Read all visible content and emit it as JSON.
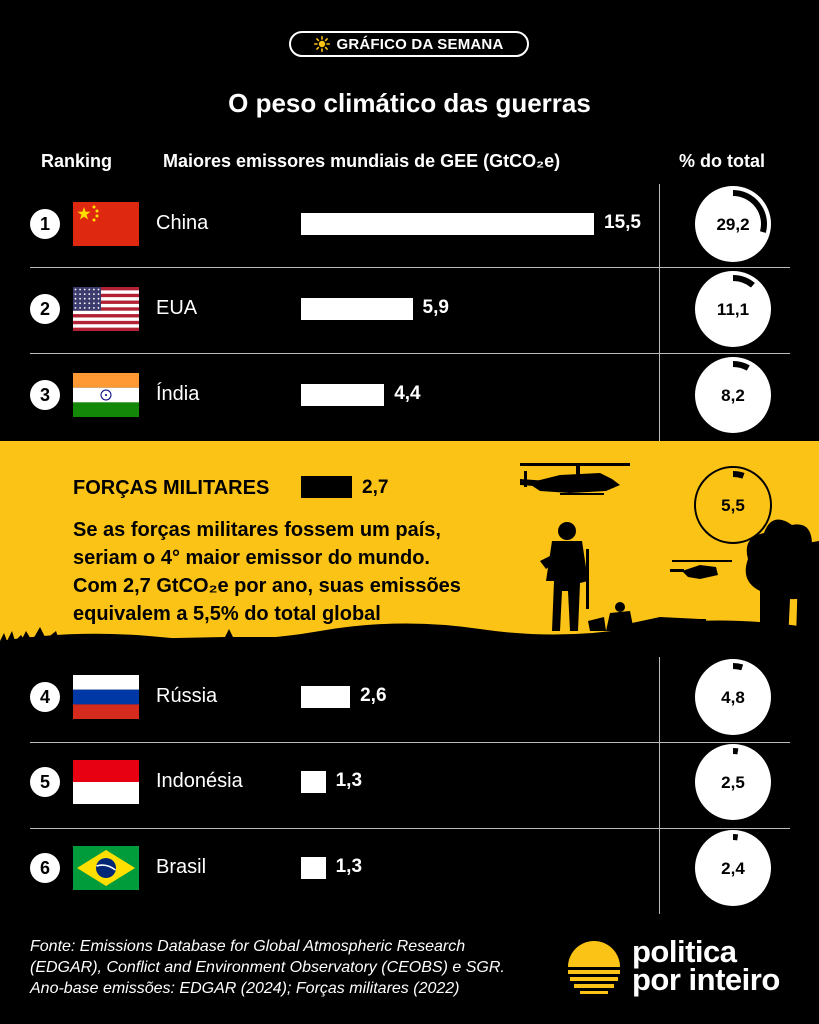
{
  "header": {
    "badge": "GRÁFICO DA SEMANA",
    "title": "O peso climático das guerras",
    "col_ranking": "Ranking",
    "col_emitters": "Maiores emissores mundiais de GEE (GtCO₂e)",
    "col_percent": "% do total"
  },
  "military": {
    "label": "FORÇAS MILITARES",
    "value_label": "2,7",
    "percent_label": "5,5",
    "text_lines": [
      "Se as forças militares fossem um país,",
      "seriam o 4° maior emissor do mundo.",
      "Com 2,7 GtCO₂e por ano, suas emissões",
      "equivalem a 5,5% do total global"
    ]
  },
  "chart_data": {
    "type": "bar",
    "categories": [
      "China",
      "EUA",
      "Índia",
      "FORÇAS MILITARES",
      "Rússia",
      "Indonésia",
      "Brasil"
    ],
    "values": [
      15.5,
      5.9,
      4.4,
      2.7,
      2.6,
      1.3,
      1.3
    ],
    "percent_of_total": [
      29.2,
      11.1,
      8.2,
      5.5,
      4.8,
      2.5,
      2.4
    ],
    "ranks": [
      "1",
      "2",
      "3",
      "",
      "4",
      "5",
      "6"
    ],
    "value_labels": [
      "15,5",
      "5,9",
      "4,4",
      "2,7",
      "2,6",
      "1,3",
      "1,3"
    ],
    "percent_labels": [
      "29,2",
      "11,1",
      "8,2",
      "5,5",
      "4,8",
      "2,5",
      "2,4"
    ]
  },
  "rows": [
    {
      "rank": "1",
      "name": "China",
      "value": 15.5,
      "value_label": "15,5",
      "percent": 29.2,
      "percent_label": "29,2",
      "flag": "china-flag"
    },
    {
      "rank": "2",
      "name": "EUA",
      "value": 5.9,
      "value_label": "5,9",
      "percent": 11.1,
      "percent_label": "11,1",
      "flag": "usa-flag"
    },
    {
      "rank": "3",
      "name": "Índia",
      "value": 4.4,
      "value_label": "4,4",
      "percent": 8.2,
      "percent_label": "8,2",
      "flag": "india-flag"
    },
    {
      "rank": "4",
      "name": "Rússia",
      "value": 2.6,
      "value_label": "2,6",
      "percent": 4.8,
      "percent_label": "4,8",
      "flag": "russia-flag"
    },
    {
      "rank": "5",
      "name": "Indonésia",
      "value": 1.3,
      "value_label": "1,3",
      "percent": 2.5,
      "percent_label": "2,5",
      "flag": "indonesia-flag"
    },
    {
      "rank": "6",
      "name": "Brasil",
      "value": 1.3,
      "value_label": "1,3",
      "percent": 2.4,
      "percent_label": "2,4",
      "flag": "brazil-flag"
    }
  ],
  "footer": {
    "source_lines": [
      "Fonte: Emissions Database for Global Atmospheric Research",
      "(EDGAR), Conflict and Environment Observatory (CEOBS) e SGR.",
      "Ano-base emissões: EDGAR (2024); Forças militares (2022)"
    ],
    "logo_line1": "politica",
    "logo_line2": "por inteiro"
  },
  "colors": {
    "background": "#000000",
    "accent_yellow": "#fcc317",
    "bar": "#ffffff",
    "military_bar": "#000000"
  }
}
